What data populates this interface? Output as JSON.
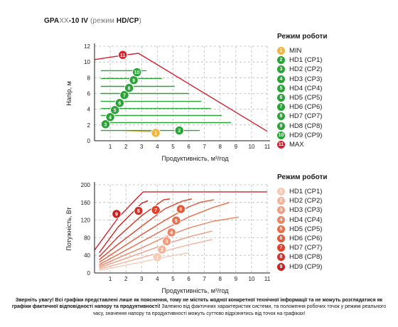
{
  "title": {
    "model": "GPA",
    "mid": "XX",
    "tail": "-10 IV",
    "open": " (режим ",
    "mode": "HD/CP",
    "close": ")"
  },
  "colors": {
    "axis": "#1a1a1a",
    "grid": "#b9b9b9",
    "max": "#d4202b",
    "min": "#f0b440",
    "green": "#29a336",
    "power": [
      "#f7c9b3",
      "#f4b29b",
      "#f19c82",
      "#ec8566",
      "#e86d4b",
      "#e35837",
      "#de422b",
      "#d62f26",
      "#cc1f20"
    ]
  },
  "chart_data": [
    {
      "type": "line",
      "xlabel": "Продуктивність, м³/год",
      "ylabel": "Напір, м",
      "xlim": [
        0,
        11
      ],
      "ylim": [
        0,
        12
      ],
      "xticks": [
        "1",
        "2",
        "3",
        "4",
        "5",
        "6",
        "7",
        "8",
        "9",
        "10",
        "11"
      ],
      "yticks": [
        "0",
        "2",
        "4",
        "6",
        "8",
        "10",
        "12"
      ],
      "series": [
        {
          "name": "MIN",
          "badge": "1",
          "color": "#f0b440",
          "values": [
            [
              1.8,
              1.3
            ],
            [
              4.0,
              1.1
            ]
          ],
          "label_at": [
            3.9,
            1.0
          ]
        },
        {
          "name": "HD1 (CP1)",
          "badge": "2",
          "color": "#29a336",
          "values": [
            [
              0.4,
              1.3
            ],
            [
              6.7,
              1.3
            ]
          ],
          "label_at": [
            5.4,
            1.3
          ]
        },
        {
          "name": "HD2 (CP2)",
          "badge": "3",
          "color": "#29a336",
          "values": [
            [
              0.4,
              2.3
            ],
            [
              8.7,
              2.3
            ]
          ],
          "label_at": [
            0.7,
            2.1
          ]
        },
        {
          "name": "HD3 (CP3)",
          "badge": "4",
          "color": "#29a336",
          "values": [
            [
              0.4,
              3.2
            ],
            [
              8.1,
              3.2
            ]
          ],
          "label_at": [
            1.0,
            3.0
          ]
        },
        {
          "name": "HD4 (CP4)",
          "badge": "5",
          "color": "#29a336",
          "values": [
            [
              0.4,
              4.1
            ],
            [
              7.4,
              4.1
            ]
          ],
          "label_at": [
            1.3,
            3.9
          ]
        },
        {
          "name": "HD5 (CP5)",
          "badge": "6",
          "color": "#29a336",
          "values": [
            [
              0.4,
              5.0
            ],
            [
              6.8,
              5.0
            ]
          ],
          "label_at": [
            1.6,
            4.8
          ]
        },
        {
          "name": "HD6 (CP6)",
          "badge": "7",
          "color": "#29a336",
          "values": [
            [
              0.4,
              6.0
            ],
            [
              6.0,
              6.0
            ]
          ],
          "label_at": [
            1.9,
            5.8
          ]
        },
        {
          "name": "HD7 (CP7)",
          "badge": "8",
          "color": "#29a336",
          "values": [
            [
              0.4,
              6.9
            ],
            [
              5.1,
              6.9
            ]
          ],
          "label_at": [
            2.2,
            6.7
          ]
        },
        {
          "name": "HD8 (CP8)",
          "badge": "9",
          "color": "#29a336",
          "values": [
            [
              0.4,
              7.9
            ],
            [
              4.3,
              7.9
            ]
          ],
          "label_at": [
            2.5,
            7.7
          ]
        },
        {
          "name": "HD9 (CP9)",
          "badge": "10",
          "color": "#29a336",
          "values": [
            [
              0.4,
              8.9
            ],
            [
              3.3,
              8.9
            ]
          ],
          "label_at": [
            2.7,
            8.7
          ]
        },
        {
          "name": "MAX",
          "badge": "11",
          "color": "#d4202b",
          "values": [
            [
              0.0,
              10.3
            ],
            [
              2.0,
              10.9
            ],
            [
              2.8,
              11.1
            ],
            [
              11.0,
              1.2
            ]
          ],
          "label_at": [
            1.8,
            10.9
          ]
        }
      ]
    },
    {
      "type": "line",
      "xlabel": "Продуктивність, м³/год",
      "ylabel": "Потужність, Вт",
      "xlim": [
        0,
        11
      ],
      "ylim": [
        0,
        200
      ],
      "xticks": [
        "1",
        "2",
        "3",
        "4",
        "5",
        "6",
        "7",
        "8",
        "9",
        "10",
        "11"
      ],
      "yticks": [
        "0",
        "40",
        "80",
        "120",
        "160",
        "200"
      ],
      "series": [
        {
          "name": "HD1 (CP1)",
          "badge": "1",
          "color": "#f7c9b3",
          "values": [
            [
              0.3,
              6
            ],
            [
              1.5,
              14
            ],
            [
              3,
              25
            ],
            [
              4.5,
              36
            ],
            [
              6,
              46
            ]
          ],
          "label_at": [
            4.0,
            36
          ]
        },
        {
          "name": "HD2 (CP2)",
          "badge": "2",
          "color": "#f4b29b",
          "values": [
            [
              0.3,
              9
            ],
            [
              1.5,
              20
            ],
            [
              3,
              35
            ],
            [
              4.5,
              50
            ],
            [
              6,
              64
            ],
            [
              7.5,
              76
            ]
          ],
          "label_at": [
            4.3,
            53
          ]
        },
        {
          "name": "HD3 (CP3)",
          "badge": "3",
          "color": "#f19c82",
          "values": [
            [
              0.3,
              12
            ],
            [
              1.5,
              27
            ],
            [
              3,
              46
            ],
            [
              4.5,
              65
            ],
            [
              6,
              82
            ],
            [
              7.5,
              95
            ]
          ],
          "label_at": [
            4.6,
            72
          ]
        },
        {
          "name": "HD4 (CP4)",
          "badge": "4",
          "color": "#ec8566",
          "values": [
            [
              0.3,
              15
            ],
            [
              1.5,
              34
            ],
            [
              3,
              57
            ],
            [
              4.5,
              82
            ],
            [
              6,
              102
            ],
            [
              7.5,
              117
            ],
            [
              9.2,
              127
            ]
          ],
          "label_at": [
            4.9,
            92
          ]
        },
        {
          "name": "HD5 (CP5)",
          "badge": "5",
          "color": "#e86d4b",
          "values": [
            [
              0.3,
              19
            ],
            [
              1.5,
              42
            ],
            [
              3,
              71
            ],
            [
              4.5,
              100
            ],
            [
              6,
              127
            ],
            [
              7.5,
              148
            ],
            [
              8.6,
              160
            ]
          ],
          "label_at": [
            5.2,
            119
          ]
        },
        {
          "name": "HD6 (CP6)",
          "badge": "6",
          "color": "#e35837",
          "values": [
            [
              0.3,
              24
            ],
            [
              1.5,
              52
            ],
            [
              3,
              87
            ],
            [
              4.5,
              120
            ],
            [
              6,
              150
            ],
            [
              6.8,
              161
            ],
            [
              7.6,
              166
            ]
          ],
          "label_at": [
            5.5,
            145
          ]
        },
        {
          "name": "HD7 (CP7)",
          "badge": "7",
          "color": "#de422b",
          "values": [
            [
              0.3,
              30
            ],
            [
              1.5,
              65
            ],
            [
              3,
              106
            ],
            [
              4.5,
              146
            ],
            [
              5.6,
              163
            ],
            [
              6.2,
              168
            ]
          ],
          "label_at": [
            3.9,
            143
          ]
        },
        {
          "name": "HD8 (CP8)",
          "badge": "8",
          "color": "#d62f26",
          "values": [
            [
              0.3,
              37
            ],
            [
              1.5,
              82
            ],
            [
              3,
              130
            ],
            [
              4.4,
              166
            ],
            [
              4.8,
              168
            ]
          ],
          "label_at": [
            2.8,
            141
          ]
        },
        {
          "name": "HD9 (CP9)",
          "badge": "9",
          "color": "#cc1f20",
          "values": [
            [
              0.3,
              46
            ],
            [
              1.5,
              104
            ],
            [
              3,
              158
            ],
            [
              3.4,
              164
            ]
          ],
          "label_at": [
            1.4,
            134
          ]
        },
        {
          "name": "MAX",
          "color": "#d4202b",
          "values": [
            [
              0.0,
              52
            ],
            [
              1.5,
              125
            ],
            [
              2.6,
              166
            ],
            [
              3.1,
              184
            ],
            [
              11,
              184
            ]
          ]
        }
      ]
    }
  ],
  "legend_top": {
    "title": "Режим роботи",
    "items": [
      {
        "badge": "1",
        "label": "MIN",
        "color": "#f0b440"
      },
      {
        "badge": "2",
        "label": "HD1 (CP1)",
        "color": "#29a336"
      },
      {
        "badge": "3",
        "label": "HD2 (CP2)",
        "color": "#29a336"
      },
      {
        "badge": "4",
        "label": "HD3 (CP3)",
        "color": "#29a336"
      },
      {
        "badge": "5",
        "label": "HD4 (CP4)",
        "color": "#29a336"
      },
      {
        "badge": "6",
        "label": "HD5 (CP5)",
        "color": "#29a336"
      },
      {
        "badge": "7",
        "label": "HD6 (CP6)",
        "color": "#29a336"
      },
      {
        "badge": "8",
        "label": "HD7 (CP7)",
        "color": "#29a336"
      },
      {
        "badge": "9",
        "label": "HD8 (CP8)",
        "color": "#29a336"
      },
      {
        "badge": "10",
        "label": "HD9 (CP9)",
        "color": "#29a336"
      },
      {
        "badge": "11",
        "label": "MAX",
        "color": "#d4202b"
      }
    ]
  },
  "legend_bottom": {
    "title": "Режим роботи",
    "items": [
      {
        "badge": "1",
        "label": "HD1 (CP1)",
        "color": "#f7c9b3"
      },
      {
        "badge": "2",
        "label": "HD2 (CP2)",
        "color": "#f4b29b"
      },
      {
        "badge": "3",
        "label": "HD3 (CP3)",
        "color": "#f19c82"
      },
      {
        "badge": "4",
        "label": "HD4 (CP4)",
        "color": "#ec8566"
      },
      {
        "badge": "5",
        "label": "HD5 (CP5)",
        "color": "#e86d4b"
      },
      {
        "badge": "6",
        "label": "HD6 (CP6)",
        "color": "#e35837"
      },
      {
        "badge": "7",
        "label": "HD7 (CP7)",
        "color": "#de422b"
      },
      {
        "badge": "8",
        "label": "HD8 (CP8)",
        "color": "#d62f26"
      },
      {
        "badge": "9",
        "label": "HD9 (CP9)",
        "color": "#cc1f20"
      }
    ]
  },
  "disclaimer": {
    "bold": "Зверніть увагу! Всі графіки представлені лише як пояснення, тому не містять жодної конкретної технічної інформації та не можуть розглядатися як графіки фактичної відповідності напору та продуктивності!",
    "text": " Залежно від фактичних характеристик системи, та положення робочих точок у режимі реального часу, значення напору та продуктивності можуть суттєво відрізнятись від точок на графіках!"
  }
}
